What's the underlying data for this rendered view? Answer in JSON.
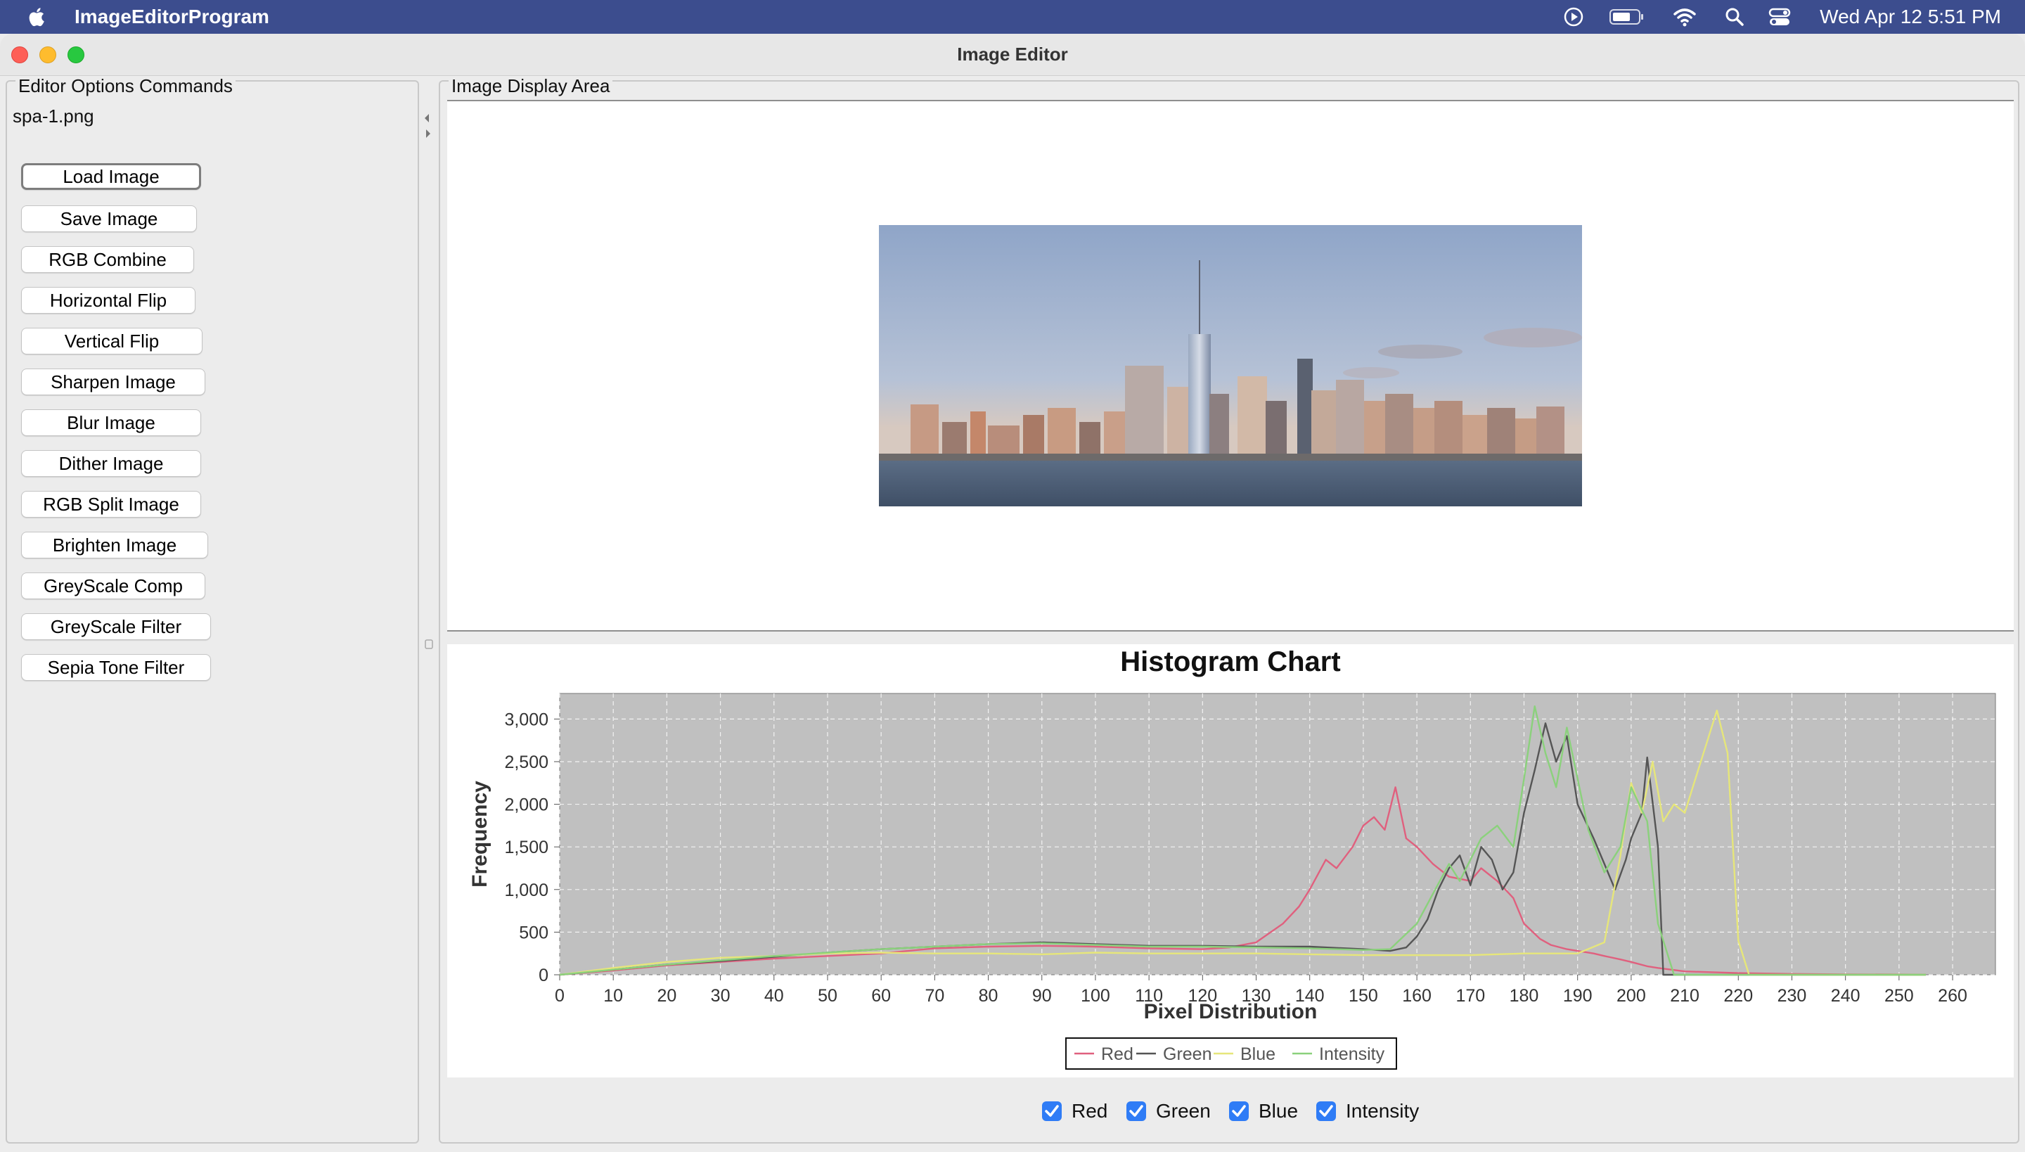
{
  "menubar": {
    "app_name": "ImageEditorProgram",
    "clock": "Wed Apr 12  5:51 PM",
    "icons": [
      "apple-icon",
      "play-circle-icon",
      "battery-icon",
      "wifi-icon",
      "search-icon",
      "control-center-icon"
    ]
  },
  "window": {
    "title": "Image Editor"
  },
  "left_panel": {
    "legend": "Editor Options Commands",
    "file_name": "spa-1.png",
    "buttons": [
      "Load Image",
      "Save Image",
      "RGB Combine",
      "Horizontal Flip",
      "Vertical Flip",
      "Sharpen Image",
      "Blur Image",
      "Dither Image",
      "RGB Split Image",
      "Brighten Image",
      "GreyScale Comp",
      "GreyScale Filter",
      "Sepia Tone Filter"
    ]
  },
  "right_panel": {
    "legend": "Image Display Area"
  },
  "checkboxes": [
    {
      "label": "Red",
      "checked": true
    },
    {
      "label": "Green",
      "checked": true
    },
    {
      "label": "Blue",
      "checked": true
    },
    {
      "label": "Intensity",
      "checked": true
    }
  ],
  "chart_data": {
    "type": "line",
    "title": "Histogram Chart",
    "xlabel": "Pixel Distribution",
    "ylabel": "Frequency",
    "xlim": [
      0,
      268
    ],
    "ylim": [
      0,
      3300
    ],
    "xticks": [
      0,
      10,
      20,
      30,
      40,
      50,
      60,
      70,
      80,
      90,
      100,
      110,
      120,
      130,
      140,
      150,
      160,
      170,
      180,
      190,
      200,
      210,
      220,
      230,
      240,
      250,
      260
    ],
    "yticks": [
      0,
      500,
      1000,
      1500,
      2000,
      2500,
      3000
    ],
    "ytick_labels": [
      "0",
      "500",
      "1,000",
      "1,500",
      "2,000",
      "2,500",
      "3,000"
    ],
    "grid": true,
    "legend_position": "bottom",
    "series": [
      {
        "name": "Red",
        "color": "#e0607e",
        "x": [
          0,
          10,
          20,
          30,
          40,
          50,
          60,
          70,
          80,
          90,
          100,
          110,
          120,
          125,
          130,
          135,
          138,
          140,
          143,
          145,
          148,
          150,
          152,
          154,
          156,
          158,
          160,
          163,
          166,
          170,
          172,
          175,
          178,
          180,
          183,
          185,
          188,
          190,
          193,
          195,
          198,
          200,
          203,
          205,
          210,
          220,
          230,
          240,
          250,
          255
        ],
        "y": [
          0,
          50,
          110,
          150,
          190,
          220,
          250,
          310,
          330,
          340,
          330,
          310,
          300,
          320,
          380,
          600,
          800,
          1000,
          1350,
          1250,
          1500,
          1750,
          1850,
          1700,
          2200,
          1600,
          1500,
          1300,
          1150,
          1100,
          1250,
          1100,
          900,
          600,
          420,
          350,
          300,
          280,
          250,
          220,
          180,
          150,
          100,
          80,
          40,
          20,
          10,
          5,
          3,
          2
        ]
      },
      {
        "name": "Green",
        "color": "#555555",
        "x": [
          0,
          10,
          20,
          30,
          40,
          50,
          60,
          70,
          80,
          90,
          100,
          110,
          120,
          130,
          140,
          150,
          155,
          158,
          160,
          162,
          164,
          166,
          168,
          170,
          172,
          174,
          176,
          178,
          180,
          182,
          184,
          186,
          188,
          190,
          193,
          195,
          197,
          199,
          200,
          202,
          203,
          205,
          206,
          210,
          220,
          230,
          240,
          255
        ],
        "y": [
          0,
          60,
          120,
          160,
          210,
          260,
          300,
          330,
          360,
          380,
          360,
          340,
          340,
          330,
          330,
          300,
          280,
          320,
          450,
          650,
          1000,
          1250,
          1400,
          1050,
          1500,
          1350,
          1000,
          1200,
          1900,
          2400,
          2950,
          2500,
          2800,
          2000,
          1600,
          1300,
          1000,
          1350,
          1600,
          1900,
          2550,
          1500,
          0,
          0,
          0,
          0,
          0,
          0
        ]
      },
      {
        "name": "Blue",
        "color": "#e6e67a",
        "x": [
          0,
          10,
          20,
          30,
          40,
          50,
          60,
          70,
          80,
          90,
          100,
          110,
          120,
          130,
          140,
          150,
          160,
          170,
          180,
          190,
          195,
          198,
          200,
          202,
          204,
          206,
          208,
          210,
          212,
          214,
          216,
          218,
          220,
          222,
          225,
          230,
          240,
          255
        ],
        "y": [
          0,
          80,
          150,
          200,
          220,
          250,
          260,
          250,
          250,
          240,
          260,
          250,
          250,
          250,
          240,
          230,
          230,
          230,
          250,
          250,
          380,
          1400,
          2250,
          1900,
          2500,
          1800,
          2000,
          1900,
          2300,
          2700,
          3100,
          2600,
          400,
          0,
          0,
          0,
          0,
          0
        ]
      },
      {
        "name": "Intensity",
        "color": "#8bd17c",
        "x": [
          0,
          10,
          20,
          30,
          40,
          50,
          60,
          70,
          80,
          90,
          100,
          110,
          120,
          130,
          140,
          150,
          155,
          160,
          163,
          166,
          168,
          170,
          172,
          175,
          178,
          180,
          182,
          184,
          186,
          188,
          190,
          192,
          195,
          198,
          200,
          203,
          205,
          208,
          210,
          220,
          255
        ],
        "y": [
          0,
          60,
          120,
          170,
          220,
          260,
          300,
          330,
          360,
          370,
          350,
          330,
          330,
          320,
          310,
          290,
          300,
          600,
          950,
          1300,
          1100,
          1350,
          1600,
          1750,
          1500,
          2300,
          3150,
          2600,
          2200,
          2900,
          2300,
          1700,
          1200,
          1500,
          2200,
          1800,
          600,
          0,
          0,
          0,
          0
        ]
      }
    ]
  }
}
